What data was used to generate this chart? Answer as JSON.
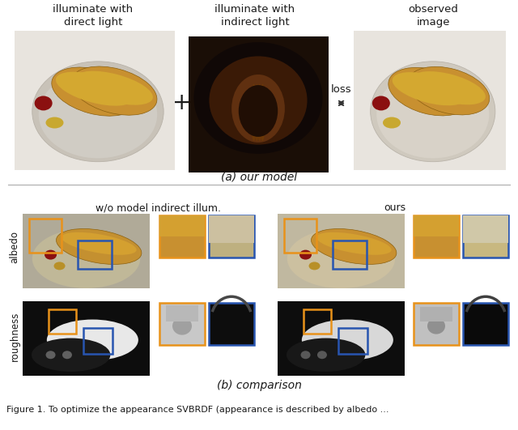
{
  "part_a_label": "(a) our model",
  "part_b_label": "(b) comparison",
  "label_direct": "illuminate with\ndirect light",
  "label_indirect": "illuminate with\nindirect light",
  "label_observed": "observed\nimage",
  "label_plus": "+",
  "label_loss": "loss",
  "label_wo": "w/o model indirect illum.",
  "label_ours": "ours",
  "label_albedo": "albedo",
  "label_roughness": "roughness",
  "bg_color": "#ffffff",
  "text_color": "#1a1a1a",
  "orange_box_color": "#E8921A",
  "blue_box_color": "#2855B0",
  "arrow_color": "#333333",
  "font_size_top_labels": 9.5,
  "font_size_section": 10,
  "font_size_side": 8.5,
  "font_size_caption": 8,
  "img1_bg": "#e8e4de",
  "img2_bg": "#1a0e06",
  "img3_bg": "#e8e4de",
  "plate1_color": "#c8c2b8",
  "plate3_color": "#cfc9be",
  "bun_color": "#c89030",
  "bun_highlight": "#d4a830",
  "indirect_warm": "#3a1a06",
  "indirect_hot": "#8B5010",
  "indirect_glow": "#603010",
  "alb_bg_wo": "#b0aa98",
  "alb_plate_wo": "#c0b898",
  "alb_bun_wo": "#c49030",
  "alb_bg_ours": "#c0b8a0",
  "alb_plate_ours": "#ccc0a0",
  "alb_bun_ours": "#c89030",
  "rgh_bg": "#0d0d0d",
  "rgh_white": "#e8e8e8",
  "rgh_white2": "#d8d8d8",
  "crop_alb_orange_fill": "#C89030",
  "crop_alb_blue_fill_wo": "#C8B870",
  "crop_alb_blue_fill_ours": "#C0B06A",
  "crop_rgh_orange_fill": "#c0c0c0",
  "crop_rgh_blue_fill": "#101010"
}
